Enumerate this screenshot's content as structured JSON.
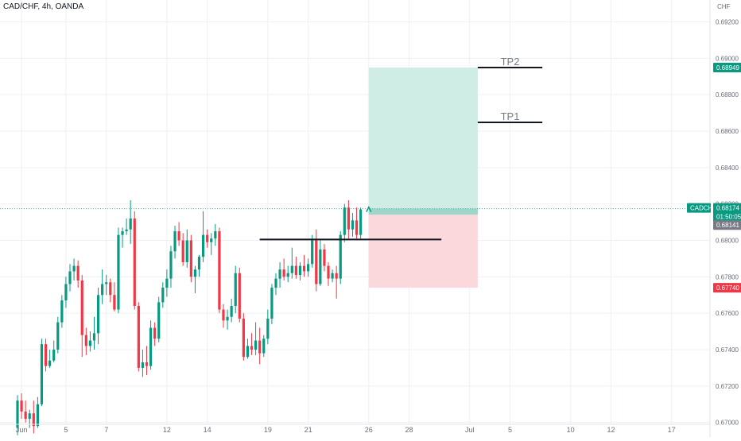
{
  "header": {
    "symbol": "CAD/CHF, 4h, OANDA",
    "currency": "CHF"
  },
  "colors": {
    "up": "#089981",
    "down": "#f23645",
    "grid": "#eef0f3",
    "text": "#6a6d78",
    "target_zone": "#cfece5",
    "stop_zone": "#fbd8dc",
    "lastprice": "#089981",
    "entry": "#787b86",
    "stop": "#f23645"
  },
  "chart_data": {
    "type": "candlestick",
    "symbol": "CAD/CHF",
    "interval": "4h",
    "source": "OANDA",
    "ylim": [
      0.6692,
      0.6932
    ],
    "y_ticks": [
      "0.69200",
      "0.69000",
      "0.68800",
      "0.68600",
      "0.68400",
      "0.68200",
      "0.68000",
      "0.67800",
      "0.67600",
      "0.67400",
      "0.67200",
      "0.67000"
    ],
    "x_ticks": [
      {
        "label": "Jun",
        "bar": 1
      },
      {
        "label": "5",
        "bar": 12
      },
      {
        "label": "7",
        "bar": 22
      },
      {
        "label": "12",
        "bar": 37
      },
      {
        "label": "14",
        "bar": 47
      },
      {
        "label": "19",
        "bar": 62
      },
      {
        "label": "21",
        "bar": 72
      },
      {
        "label": "26",
        "bar": 87
      },
      {
        "label": "28",
        "bar": 97
      },
      {
        "label": "Jul",
        "bar": 112
      },
      {
        "label": "5",
        "bar": 122
      },
      {
        "label": "10",
        "bar": 137
      },
      {
        "label": "12",
        "bar": 147
      },
      {
        "label": "17",
        "bar": 162
      }
    ],
    "candles": [
      [
        0.6697,
        0.6715,
        0.6693,
        0.6712
      ],
      [
        0.6712,
        0.6716,
        0.6702,
        0.6706
      ],
      [
        0.6706,
        0.6712,
        0.67,
        0.6702
      ],
      [
        0.6702,
        0.6707,
        0.6697,
        0.6705
      ],
      [
        0.6705,
        0.6712,
        0.6694,
        0.6698
      ],
      [
        0.6698,
        0.6714,
        0.6697,
        0.671
      ],
      [
        0.671,
        0.6746,
        0.6709,
        0.6743
      ],
      [
        0.6743,
        0.6746,
        0.6728,
        0.6731
      ],
      [
        0.6731,
        0.674,
        0.673,
        0.6734
      ],
      [
        0.6734,
        0.6745,
        0.6733,
        0.674
      ],
      [
        0.674,
        0.6758,
        0.6738,
        0.6755
      ],
      [
        0.6755,
        0.677,
        0.6752,
        0.6767
      ],
      [
        0.6767,
        0.678,
        0.6763,
        0.6776
      ],
      [
        0.6776,
        0.6787,
        0.6772,
        0.6783
      ],
      [
        0.6783,
        0.679,
        0.6778,
        0.6786
      ],
      [
        0.6786,
        0.6789,
        0.6774,
        0.6778
      ],
      [
        0.6778,
        0.6781,
        0.6736,
        0.6748
      ],
      [
        0.6748,
        0.6752,
        0.6737,
        0.6742
      ],
      [
        0.6742,
        0.675,
        0.6739,
        0.6745
      ],
      [
        0.6745,
        0.6758,
        0.674,
        0.6749
      ],
      [
        0.6749,
        0.6774,
        0.6743,
        0.677
      ],
      [
        0.677,
        0.6784,
        0.6765,
        0.6776
      ],
      [
        0.6776,
        0.6781,
        0.677,
        0.6777
      ],
      [
        0.6777,
        0.6779,
        0.6766,
        0.677
      ],
      [
        0.677,
        0.6777,
        0.6761,
        0.6762
      ],
      [
        0.6762,
        0.6807,
        0.676,
        0.6803
      ],
      [
        0.6803,
        0.6807,
        0.6796,
        0.6805
      ],
      [
        0.6805,
        0.6812,
        0.6803,
        0.6806
      ],
      [
        0.6806,
        0.6822,
        0.6798,
        0.6812
      ],
      [
        0.6812,
        0.6816,
        0.6762,
        0.6764
      ],
      [
        0.6764,
        0.6766,
        0.6728,
        0.673
      ],
      [
        0.673,
        0.674,
        0.6725,
        0.6733
      ],
      [
        0.6733,
        0.6742,
        0.6726,
        0.6731
      ],
      [
        0.6731,
        0.6756,
        0.6729,
        0.6752
      ],
      [
        0.6752,
        0.6755,
        0.6742,
        0.6746
      ],
      [
        0.6746,
        0.6769,
        0.6744,
        0.6766
      ],
      [
        0.6766,
        0.6777,
        0.6763,
        0.6774
      ],
      [
        0.6774,
        0.6784,
        0.6769,
        0.6779
      ],
      [
        0.6779,
        0.6797,
        0.6774,
        0.6794
      ],
      [
        0.6794,
        0.6808,
        0.679,
        0.6805
      ],
      [
        0.6805,
        0.681,
        0.6797,
        0.68
      ],
      [
        0.68,
        0.6804,
        0.6786,
        0.6788
      ],
      [
        0.6788,
        0.6806,
        0.6785,
        0.68
      ],
      [
        0.68,
        0.6803,
        0.6777,
        0.678
      ],
      [
        0.678,
        0.6786,
        0.6771,
        0.6784
      ],
      [
        0.6784,
        0.6792,
        0.678,
        0.6791
      ],
      [
        0.6791,
        0.6816,
        0.6788,
        0.6803
      ],
      [
        0.6803,
        0.6806,
        0.6796,
        0.6799
      ],
      [
        0.6799,
        0.6804,
        0.6792,
        0.6801
      ],
      [
        0.6801,
        0.6809,
        0.6797,
        0.6805
      ],
      [
        0.6805,
        0.6807,
        0.676,
        0.6762
      ],
      [
        0.6762,
        0.6765,
        0.6752,
        0.6756
      ],
      [
        0.6756,
        0.6762,
        0.6751,
        0.6758
      ],
      [
        0.6758,
        0.6768,
        0.6755,
        0.6764
      ],
      [
        0.6764,
        0.6786,
        0.676,
        0.6782
      ],
      [
        0.6782,
        0.6785,
        0.6755,
        0.6757
      ],
      [
        0.6757,
        0.676,
        0.6734,
        0.6736
      ],
      [
        0.6736,
        0.6746,
        0.6735,
        0.6742
      ],
      [
        0.6742,
        0.6749,
        0.6737,
        0.674
      ],
      [
        0.674,
        0.6755,
        0.6737,
        0.6745
      ],
      [
        0.6745,
        0.6752,
        0.6732,
        0.6738
      ],
      [
        0.6738,
        0.6748,
        0.6736,
        0.6746
      ],
      [
        0.6746,
        0.6762,
        0.6743,
        0.6757
      ],
      [
        0.6757,
        0.6776,
        0.6754,
        0.6774
      ],
      [
        0.6774,
        0.6782,
        0.677,
        0.6779
      ],
      [
        0.6779,
        0.6788,
        0.6774,
        0.6784
      ],
      [
        0.6784,
        0.679,
        0.6778,
        0.678
      ],
      [
        0.678,
        0.6786,
        0.6777,
        0.6782
      ],
      [
        0.6782,
        0.6796,
        0.6779,
        0.6786
      ],
      [
        0.6786,
        0.6791,
        0.6779,
        0.6781
      ],
      [
        0.6781,
        0.6788,
        0.6778,
        0.6786
      ],
      [
        0.6786,
        0.6792,
        0.678,
        0.6783
      ],
      [
        0.6783,
        0.679,
        0.678,
        0.6787
      ],
      [
        0.6787,
        0.6803,
        0.6785,
        0.68
      ],
      [
        0.68,
        0.6806,
        0.6772,
        0.6776
      ],
      [
        0.6776,
        0.68,
        0.6775,
        0.6795
      ],
      [
        0.6795,
        0.6798,
        0.6783,
        0.6786
      ],
      [
        0.6786,
        0.6788,
        0.6775,
        0.6779
      ],
      [
        0.6779,
        0.6784,
        0.6777,
        0.6782
      ],
      [
        0.6782,
        0.6786,
        0.6768,
        0.6779
      ],
      [
        0.6779,
        0.6805,
        0.6776,
        0.6803
      ],
      [
        0.6803,
        0.682,
        0.6799,
        0.6818
      ],
      [
        0.6818,
        0.6822,
        0.6801,
        0.6806
      ],
      [
        0.6806,
        0.6815,
        0.6802,
        0.6811
      ],
      [
        0.6811,
        0.6818,
        0.6801,
        0.6803
      ],
      [
        0.6803,
        0.6818,
        0.6801,
        0.6817
      ]
    ],
    "annotations": {
      "horizontal_line": {
        "price": 0.68005,
        "from_bar": 60,
        "to_bar": 105
      },
      "long_position": {
        "from_bar": 87,
        "to_bar": 114,
        "entry": 0.68141,
        "target": 0.68949,
        "stop": 0.6774
      },
      "tp_lines": [
        {
          "label": "TP2",
          "price": 0.68949,
          "from_bar": 114,
          "to_bar": 130
        },
        {
          "label": "TP1",
          "price": 0.68648,
          "from_bar": 114,
          "to_bar": 130
        }
      ]
    },
    "price_labels": {
      "last": {
        "symbol": "CADCHF",
        "price": "0.68174",
        "countdown": "01:50:05",
        "value": 0.68174
      },
      "entry": {
        "price": "0.68141",
        "value": 0.68141
      },
      "target": {
        "price": "0.68949",
        "value": 0.68949
      },
      "stop": {
        "price": "0.67740",
        "value": 0.6774
      }
    }
  }
}
